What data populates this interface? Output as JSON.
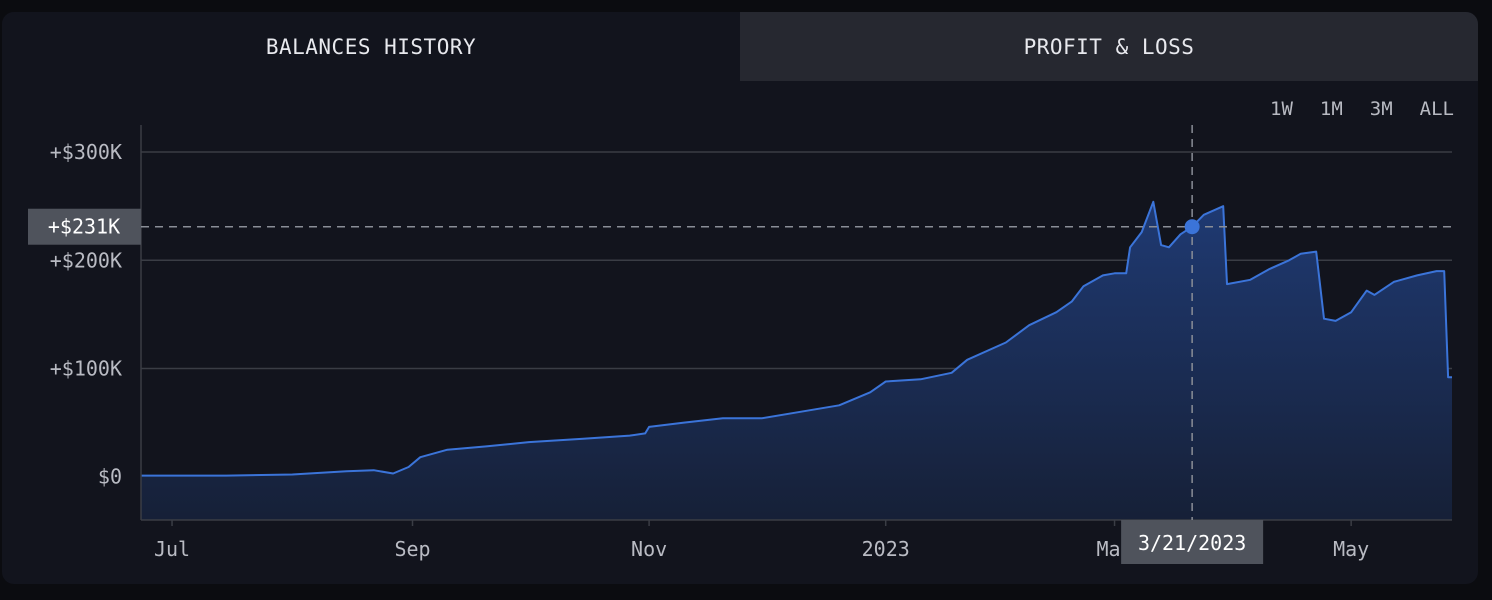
{
  "tabs": {
    "balances_label": "BALANCES HISTORY",
    "pnl_label": "PROFIT & LOSS"
  },
  "ranges": [
    "1W",
    "1M",
    "3M",
    "ALL"
  ],
  "colors": {
    "line": "#3b74d9",
    "fill_top": "#1f3a73",
    "fill_bottom": "#162037",
    "grid": "#3a3d45",
    "crosshair": "#8a8e97",
    "pill_bg": "#4f535c"
  },
  "crosshair": {
    "value_label": "+$231K",
    "date_label": "3/21/2023",
    "date": "2023-03-21",
    "value": 231000
  },
  "chart_data": {
    "type": "area",
    "ylim": [
      -40000,
      325000
    ],
    "xlim": [
      "2022-06-23",
      "2023-05-27"
    ],
    "yticks": [
      {
        "value": 0,
        "label": "$0"
      },
      {
        "value": 100000,
        "label": "+$100K"
      },
      {
        "value": 200000,
        "label": "+$200K"
      },
      {
        "value": 300000,
        "label": "+$300K"
      }
    ],
    "xticks": [
      {
        "date": "2022-07-01",
        "label": "Jul"
      },
      {
        "date": "2022-09-01",
        "label": "Sep"
      },
      {
        "date": "2022-11-01",
        "label": "Nov"
      },
      {
        "date": "2023-01-01",
        "label": "2023"
      },
      {
        "date": "2023-03-01",
        "label": "Mar"
      },
      {
        "date": "2023-05-01",
        "label": "May"
      }
    ],
    "points": [
      [
        "2022-06-23",
        1000
      ],
      [
        "2022-07-15",
        1000
      ],
      [
        "2022-08-01",
        2000
      ],
      [
        "2022-08-15",
        5000
      ],
      [
        "2022-08-22",
        6000
      ],
      [
        "2022-08-27",
        3000
      ],
      [
        "2022-08-31",
        9000
      ],
      [
        "2022-09-03",
        18000
      ],
      [
        "2022-09-10",
        25000
      ],
      [
        "2022-09-20",
        28000
      ],
      [
        "2022-10-01",
        32000
      ],
      [
        "2022-10-15",
        35000
      ],
      [
        "2022-10-27",
        38000
      ],
      [
        "2022-10-31",
        40000
      ],
      [
        "2022-11-01",
        46000
      ],
      [
        "2022-11-10",
        50000
      ],
      [
        "2022-11-20",
        54000
      ],
      [
        "2022-11-30",
        54000
      ],
      [
        "2022-12-10",
        60000
      ],
      [
        "2022-12-20",
        66000
      ],
      [
        "2022-12-28",
        78000
      ],
      [
        "2023-01-01",
        88000
      ],
      [
        "2023-01-10",
        90000
      ],
      [
        "2023-01-18",
        96000
      ],
      [
        "2023-01-22",
        108000
      ],
      [
        "2023-02-01",
        124000
      ],
      [
        "2023-02-07",
        140000
      ],
      [
        "2023-02-14",
        152000
      ],
      [
        "2023-02-18",
        162000
      ],
      [
        "2023-02-21",
        176000
      ],
      [
        "2023-02-26",
        186000
      ],
      [
        "2023-03-01",
        188000
      ],
      [
        "2023-03-04",
        188000
      ],
      [
        "2023-03-05",
        212000
      ],
      [
        "2023-03-08",
        226000
      ],
      [
        "2023-03-11",
        254000
      ],
      [
        "2023-03-13",
        214000
      ],
      [
        "2023-03-15",
        212000
      ],
      [
        "2023-03-18",
        224000
      ],
      [
        "2023-03-21",
        231000
      ],
      [
        "2023-03-24",
        242000
      ],
      [
        "2023-03-29",
        250000
      ],
      [
        "2023-03-30",
        178000
      ],
      [
        "2023-04-05",
        182000
      ],
      [
        "2023-04-10",
        192000
      ],
      [
        "2023-04-15",
        200000
      ],
      [
        "2023-04-18",
        206000
      ],
      [
        "2023-04-22",
        208000
      ],
      [
        "2023-04-24",
        146000
      ],
      [
        "2023-04-27",
        144000
      ],
      [
        "2023-05-01",
        152000
      ],
      [
        "2023-05-05",
        172000
      ],
      [
        "2023-05-07",
        168000
      ],
      [
        "2023-05-12",
        180000
      ],
      [
        "2023-05-18",
        186000
      ],
      [
        "2023-05-23",
        190000
      ],
      [
        "2023-05-25",
        190000
      ],
      [
        "2023-05-26",
        92000
      ],
      [
        "2023-05-27",
        92000
      ]
    ]
  }
}
